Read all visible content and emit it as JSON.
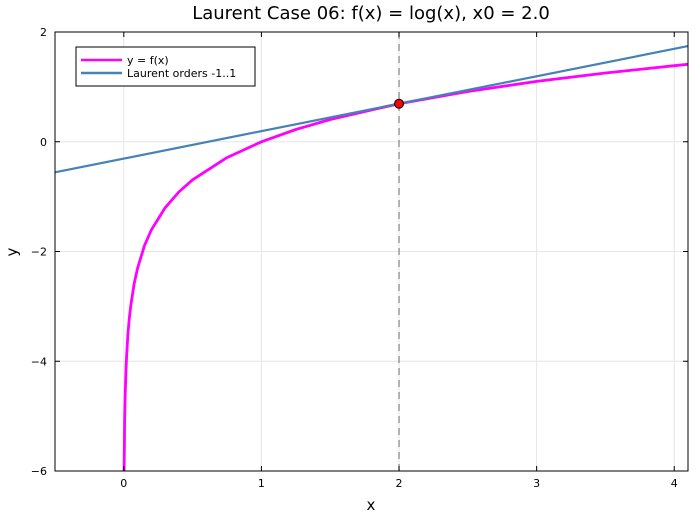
{
  "chart_data": {
    "type": "line",
    "title": "Laurent Case 06: f(x) = log(x), x0 = 2.0",
    "xlabel": "x",
    "ylabel": "y",
    "xlim": [
      -0.5,
      4.1
    ],
    "ylim": [
      -6,
      2
    ],
    "xticks": [
      0,
      1,
      2,
      3,
      4
    ],
    "yticks": [
      -6,
      -4,
      -2,
      0,
      2
    ],
    "xtick_labels": [
      "0",
      "1",
      "2",
      "3",
      "4"
    ],
    "ytick_labels": [
      "−6",
      "−4",
      "−2",
      "0",
      "2"
    ],
    "grid": true,
    "legend_position": "top-left",
    "series": [
      {
        "name": "y = f(x)",
        "color": "#ff00ff",
        "x": [
          0.0025,
          0.004,
          0.006,
          0.008,
          0.01,
          0.015,
          0.02,
          0.03,
          0.04,
          0.05,
          0.075,
          0.1,
          0.15,
          0.2,
          0.3,
          0.4,
          0.5,
          0.75,
          1,
          1.25,
          1.5,
          2,
          2.5,
          3,
          3.5,
          4,
          4.1
        ],
        "y": [
          -5.991,
          -5.521,
          -5.116,
          -4.828,
          -4.605,
          -4.2,
          -3.912,
          -3.507,
          -3.219,
          -2.996,
          -2.59,
          -2.303,
          -1.897,
          -1.609,
          -1.204,
          -0.916,
          -0.693,
          -0.288,
          0,
          0.223,
          0.405,
          0.693,
          0.916,
          1.099,
          1.253,
          1.386,
          1.411
        ]
      },
      {
        "name": "Laurent orders -1..1",
        "color": "#4682b4",
        "x": [
          -0.5,
          4.1
        ],
        "y": [
          -0.557,
          1.743
        ]
      }
    ],
    "vline": {
      "x": 2.0,
      "color": "#808080",
      "style": "dashed"
    },
    "marker": {
      "x": 2.0,
      "y": 0.693,
      "color": "#ff0000"
    }
  }
}
